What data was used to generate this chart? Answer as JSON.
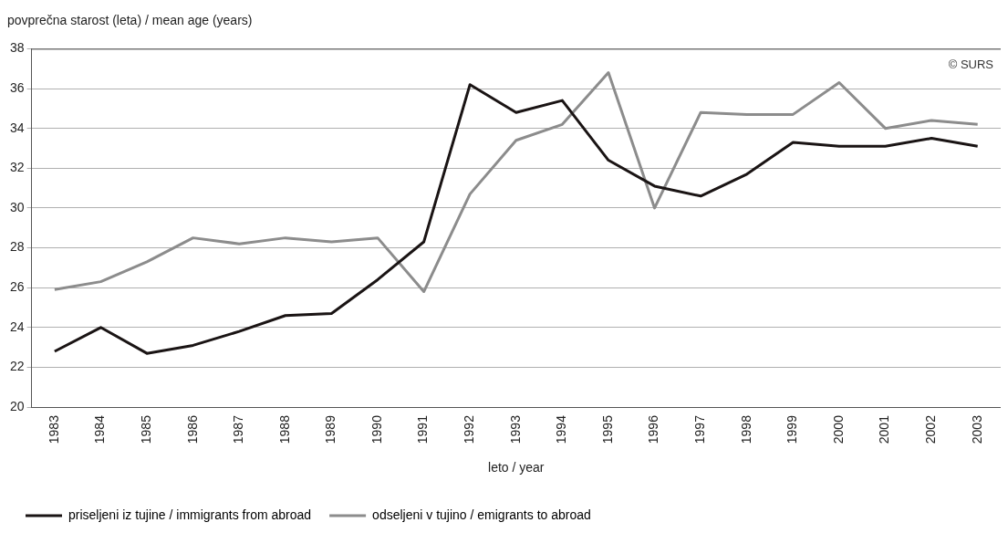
{
  "chart_data": {
    "type": "line",
    "ylabel": "povprečna starost (leta) / mean age (years)",
    "xlabel": "leto / year",
    "categories": [
      "1983",
      "1984",
      "1985",
      "1986",
      "1987",
      "1988",
      "1989",
      "1990",
      "1991",
      "1992",
      "1993",
      "1994",
      "1995",
      "1996",
      "1997",
      "1998",
      "1999",
      "2000",
      "2001",
      "2002",
      "2003"
    ],
    "series": [
      {
        "name": "priseljeni iz tujine / immigrants from abroad",
        "color": "#1a1414",
        "values": [
          22.8,
          24.0,
          22.7,
          23.1,
          23.8,
          24.6,
          24.7,
          26.4,
          28.3,
          36.2,
          34.8,
          35.4,
          32.4,
          31.1,
          30.6,
          31.7,
          33.3,
          33.1,
          33.1,
          33.5,
          33.1
        ]
      },
      {
        "name": "odseljeni v tujino / emigrants to abroad",
        "color": "#8c8c8c",
        "values": [
          25.9,
          26.3,
          27.3,
          28.5,
          28.2,
          28.5,
          28.3,
          28.5,
          25.8,
          30.7,
          33.4,
          34.2,
          36.8,
          30.0,
          34.8,
          34.7,
          34.7,
          36.3,
          34.0,
          34.4,
          34.2
        ]
      }
    ],
    "ylim": [
      20,
      38
    ],
    "yticks": [
      20,
      22,
      24,
      26,
      28,
      30,
      32,
      34,
      36,
      38
    ],
    "grid": "y",
    "legend": "bottom",
    "marker": "none",
    "line_style": "solid",
    "annotations": [
      "© SURS"
    ]
  }
}
